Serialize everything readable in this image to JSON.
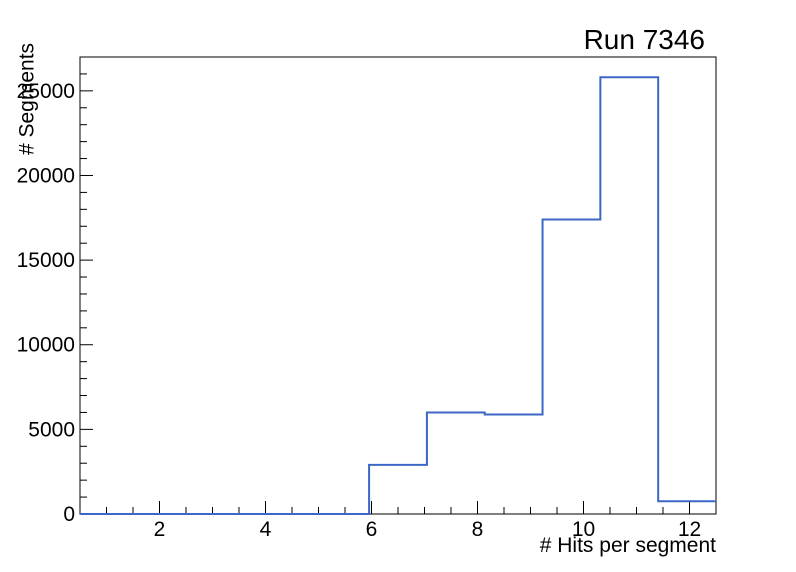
{
  "chart_data": {
    "type": "histogram",
    "title": "Run 7346",
    "xlabel": "# Hits per segment",
    "ylabel": "# Segments",
    "xlim": [
      0.5,
      12.5
    ],
    "ylim": [
      0,
      27000
    ],
    "bin_edges": [
      0.5,
      1.5909,
      2.6818,
      3.7727,
      4.8636,
      5.9545,
      7.0455,
      8.1364,
      9.2273,
      10.3182,
      11.4091,
      12.5
    ],
    "counts": [
      0,
      0,
      0,
      0,
      0,
      2900,
      6000,
      5880,
      17400,
      25800,
      750
    ],
    "x_major_ticks": [
      2,
      4,
      6,
      8,
      10,
      12
    ],
    "x_minor_step": 0.5,
    "y_major_ticks": [
      0,
      5000,
      10000,
      15000,
      20000,
      25000
    ],
    "y_minor_step": 1000,
    "grid": false,
    "legend": null,
    "line_color": "#3c67c6",
    "axis_color": "#000000",
    "background_color": "#ffffff"
  }
}
